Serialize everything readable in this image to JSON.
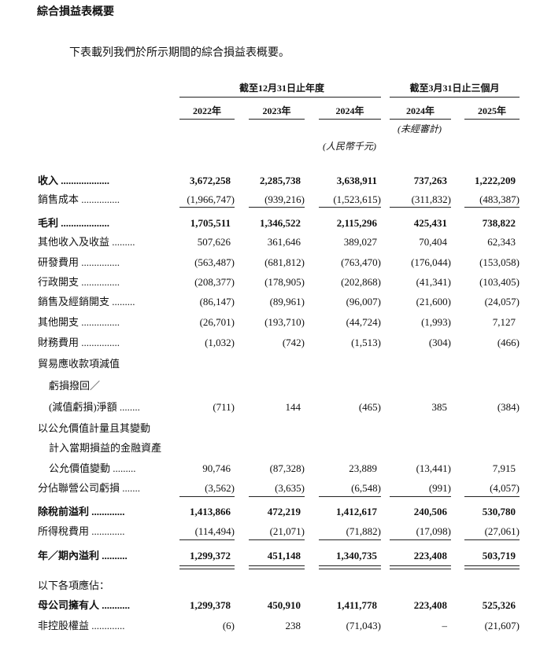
{
  "header": {
    "title": "綜合損益表概要",
    "intro": "下表載列我們於所示期間的綜合損益表概要。"
  },
  "table": {
    "group_headers": [
      "截至12月31日止年度",
      "截至3月31日止三個月"
    ],
    "years": [
      "2022年",
      "2023年",
      "2024年",
      "2024年",
      "2025年"
    ],
    "unaudited": "(未經審計)",
    "unit": "(人民幣千元)",
    "rows": [
      {
        "label": "收入 ...................",
        "values": [
          "3,672,258",
          "2,285,738",
          "3,638,911",
          "737,263",
          "1,222,209"
        ]
      },
      {
        "label": "銷售成本 ...............",
        "values": [
          "(1,966,747)",
          "(939,216)",
          "(1,523,615)",
          "(311,832)",
          "(483,387)"
        ]
      },
      {
        "label": "毛利 ...................",
        "values": [
          "1,705,511",
          "1,346,522",
          "2,115,296",
          "425,431",
          "738,822"
        ]
      },
      {
        "label": "其他收入及收益 .........",
        "values": [
          "507,626",
          "361,646",
          "389,027",
          "70,404",
          "62,343"
        ]
      },
      {
        "label": "研發費用 ...............",
        "values": [
          "(563,487)",
          "(681,812)",
          "(763,470)",
          "(176,044)",
          "(153,058)"
        ]
      },
      {
        "label": "行政開支 ...............",
        "values": [
          "(208,377)",
          "(178,905)",
          "(202,868)",
          "(41,341)",
          "(103,405)"
        ]
      },
      {
        "label": "銷售及經銷開支 .........",
        "values": [
          "(86,147)",
          "(89,961)",
          "(96,007)",
          "(21,600)",
          "(24,057)"
        ]
      },
      {
        "label": "其他開支 ...............",
        "values": [
          "(26,701)",
          "(193,710)",
          "(44,724)",
          "(1,993)",
          "7,127"
        ]
      },
      {
        "label": "財務費用 ...............",
        "values": [
          "(1,032)",
          "(742)",
          "(1,513)",
          "(304)",
          "(466)"
        ]
      },
      {
        "label": "貿易應收款項減值"
      },
      {
        "label": "虧損撥回／"
      },
      {
        "label": "(減值虧損)淨額 ........",
        "values": [
          "(711)",
          "144",
          "(465)",
          "385",
          "(384)"
        ]
      },
      {
        "label": "以公允價值計量且其變動"
      },
      {
        "label": "計入當期損益的金融資產"
      },
      {
        "label": "公允價值變動 .........",
        "values": [
          "90,746",
          "(87,328)",
          "23,889",
          "(13,441)",
          "7,915"
        ]
      },
      {
        "label": "分佔聯營公司虧損 .......",
        "values": [
          "(3,562)",
          "(3,635)",
          "(6,548)",
          "(991)",
          "(4,057)"
        ]
      },
      {
        "label": "除稅前溢利 .............",
        "values": [
          "1,413,866",
          "472,219",
          "1,412,617",
          "240,506",
          "530,780"
        ]
      },
      {
        "label": "所得稅費用 .............",
        "values": [
          "(114,494)",
          "(21,071)",
          "(71,882)",
          "(17,098)",
          "(27,061)"
        ]
      },
      {
        "label": "年／期內溢利 ..........",
        "values": [
          "1,299,372",
          "451,148",
          "1,340,735",
          "223,408",
          "503,719"
        ]
      },
      {
        "label": "以下各項應佔："
      },
      {
        "label": "母公司擁有人 ...........",
        "values": [
          "1,299,378",
          "450,910",
          "1,411,778",
          "223,408",
          "525,326"
        ]
      },
      {
        "label": "非控股權益 .............",
        "values": [
          "(6)",
          "238",
          "(71,043)",
          "–",
          "(21,607)"
        ]
      }
    ]
  }
}
